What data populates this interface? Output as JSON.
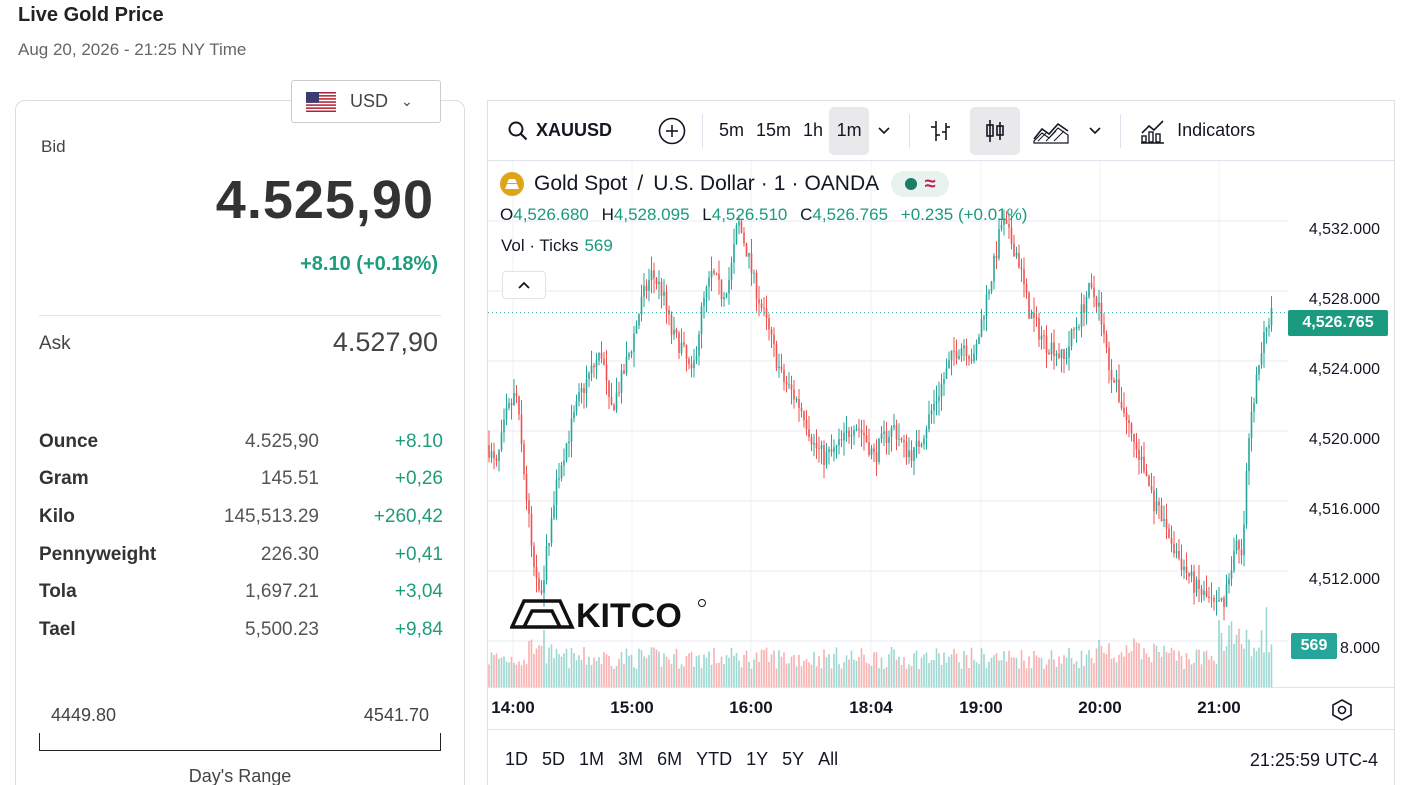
{
  "header": {
    "title": "Live Gold Price",
    "timestamp": "Aug 20, 2026 - 21:25 NY Time"
  },
  "currency": {
    "selected": "USD",
    "flag_icon": "us-flag-icon"
  },
  "quote": {
    "bid_label": "Bid",
    "bid": "4.525,90",
    "change": "+8.10 (+0.18%)",
    "ask_label": "Ask",
    "ask": "4.527,90",
    "positive_color": "#1f9d7a"
  },
  "units": [
    {
      "name": "Ounce",
      "price": "4.525,90",
      "change": "+8.10"
    },
    {
      "name": "Gram",
      "price": "145.51",
      "change": "+0,26"
    },
    {
      "name": "Kilo",
      "price": "145,513.29",
      "change": "+260,42"
    },
    {
      "name": "Pennyweight",
      "price": "226.30",
      "change": "+0,41"
    },
    {
      "name": "Tola",
      "price": "1,697.21",
      "change": "+3,04"
    },
    {
      "name": "Tael",
      "price": "5,500.23",
      "change": "+9,84"
    }
  ],
  "day_range": {
    "low": "4449.80",
    "high": "4541.70",
    "caption": "Day's Range"
  },
  "toolbar": {
    "symbol": "XAUUSD",
    "intervals": [
      "5m",
      "15m",
      "1h",
      "1m"
    ],
    "active_interval": "1m",
    "indicators_label": "Indicators"
  },
  "legend": {
    "instrument": "Gold Spot",
    "separator": "/",
    "quote_currency": "U.S. Dollar",
    "interval": "1",
    "source": "OANDA",
    "bullet": "·",
    "ohlc": {
      "o_label": "O",
      "o": "4,526.680",
      "h_label": "H",
      "h": "4,528.095",
      "l_label": "L",
      "l": "4,526.510",
      "c_label": "C",
      "c": "4,526.765",
      "change": "+0.235 (+0.01%)"
    },
    "volume_label": "Vol · Ticks",
    "volume_value": "569"
  },
  "watermark": "KITCO",
  "price_axis": {
    "ticks": [
      "4,532.000",
      "4,528.000",
      "4,524.000",
      "4,520.000",
      "4,516.000",
      "4,512.000",
      "8.000"
    ],
    "last_price": "4,526.765",
    "volume_badge": "569"
  },
  "time_axis": [
    "14:00",
    "15:00",
    "16:00",
    "18:04",
    "19:00",
    "20:00",
    "21:00"
  ],
  "ranges": [
    "1D",
    "5D",
    "1M",
    "3M",
    "6M",
    "YTD",
    "1Y",
    "5Y",
    "All"
  ],
  "clock": "21:25:59 UTC-4",
  "chart_data": {
    "type": "candlestick",
    "ylim": [
      4508,
      4534
    ],
    "path": [
      [
        0,
        4519.2
      ],
      [
        8,
        4517.8
      ],
      [
        18,
        4520.8
      ],
      [
        28,
        4522.2
      ],
      [
        38,
        4516.5
      ],
      [
        46,
        4512.0
      ],
      [
        54,
        4511.0
      ],
      [
        62,
        4514.5
      ],
      [
        72,
        4518.0
      ],
      [
        82,
        4520.0
      ],
      [
        92,
        4522.0
      ],
      [
        104,
        4523.5
      ],
      [
        114,
        4524.5
      ],
      [
        122,
        4521.0
      ],
      [
        134,
        4523.0
      ],
      [
        144,
        4525.0
      ],
      [
        154,
        4527.5
      ],
      [
        164,
        4529.0
      ],
      [
        174,
        4528.0
      ],
      [
        184,
        4525.5
      ],
      [
        194,
        4524.8
      ],
      [
        204,
        4523.0
      ],
      [
        214,
        4527.0
      ],
      [
        224,
        4529.0
      ],
      [
        234,
        4527.8
      ],
      [
        242,
        4528.8
      ],
      [
        250,
        4532.0
      ],
      [
        258,
        4530.5
      ],
      [
        266,
        4528.5
      ],
      [
        274,
        4527.0
      ],
      [
        284,
        4525.0
      ],
      [
        294,
        4523.0
      ],
      [
        304,
        4522.2
      ],
      [
        316,
        4521.0
      ],
      [
        326,
        4519.2
      ],
      [
        336,
        4518.5
      ],
      [
        346,
        4518.8
      ],
      [
        356,
        4519.5
      ],
      [
        366,
        4520.5
      ],
      [
        376,
        4519.8
      ],
      [
        386,
        4518.5
      ],
      [
        396,
        4519.6
      ],
      [
        406,
        4520.2
      ],
      [
        416,
        4519.0
      ],
      [
        426,
        4518.7
      ],
      [
        436,
        4520.0
      ],
      [
        446,
        4521.5
      ],
      [
        456,
        4523.0
      ],
      [
        466,
        4524.5
      ],
      [
        476,
        4525.0
      ],
      [
        486,
        4524.0
      ],
      [
        496,
        4527.0
      ],
      [
        506,
        4529.5
      ],
      [
        514,
        4532.0
      ],
      [
        522,
        4531.0
      ],
      [
        530,
        4530.0
      ],
      [
        540,
        4527.0
      ],
      [
        548,
        4526.0
      ],
      [
        558,
        4525.0
      ],
      [
        566,
        4524.8
      ],
      [
        576,
        4524.0
      ],
      [
        584,
        4525.5
      ],
      [
        592,
        4526.5
      ],
      [
        600,
        4528.0
      ],
      [
        610,
        4527.5
      ],
      [
        620,
        4524.0
      ],
      [
        628,
        4522.5
      ],
      [
        638,
        4520.8
      ],
      [
        648,
        4519.0
      ],
      [
        658,
        4517.5
      ],
      [
        668,
        4515.5
      ],
      [
        678,
        4514.5
      ],
      [
        688,
        4513.0
      ],
      [
        698,
        4512.0
      ],
      [
        708,
        4511.0
      ],
      [
        718,
        4510.5
      ],
      [
        728,
        4509.8
      ],
      [
        736,
        4510.5
      ],
      [
        742,
        4512.0
      ],
      [
        748,
        4513.5
      ],
      [
        754,
        4512.5
      ],
      [
        760,
        4519.0
      ],
      [
        766,
        4522.0
      ],
      [
        772,
        4524.0
      ],
      [
        778,
        4526.0
      ],
      [
        784,
        4526.765
      ]
    ],
    "volume": {
      "last": 569
    }
  }
}
